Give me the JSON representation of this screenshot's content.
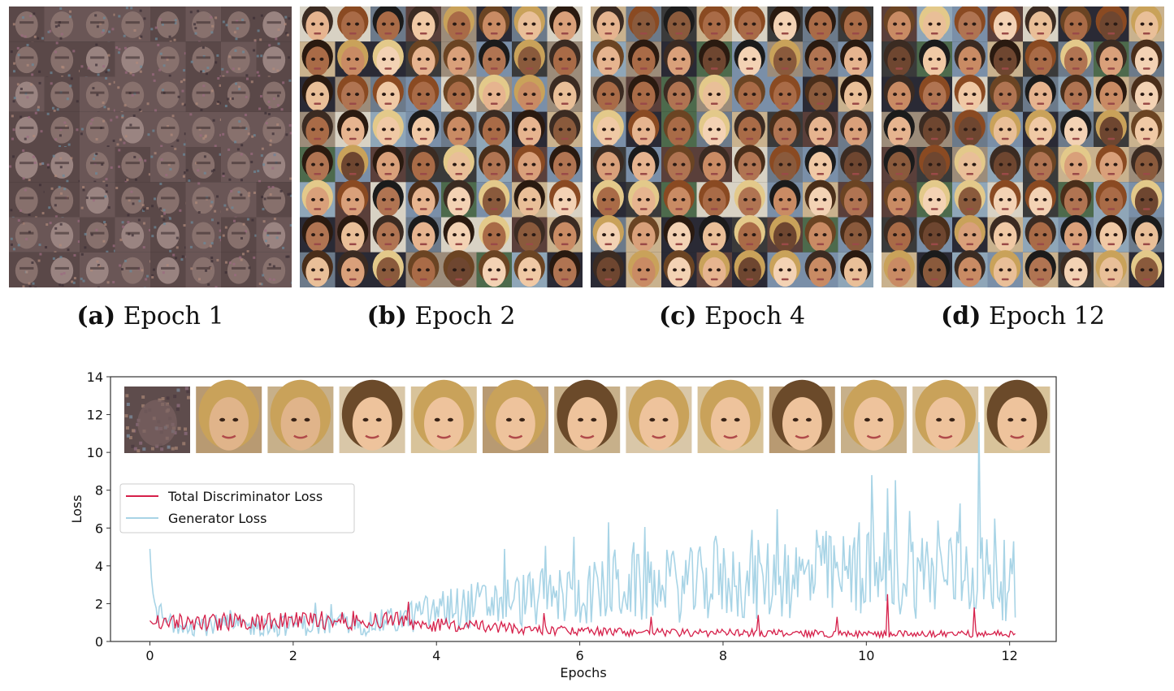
{
  "panels": [
    {
      "letter": "(a)",
      "label": "Epoch 1",
      "style": "noise"
    },
    {
      "letter": "(b)",
      "label": "Epoch 2",
      "style": "faces"
    },
    {
      "letter": "(c)",
      "label": "Epoch 4",
      "style": "faces"
    },
    {
      "letter": "(d)",
      "label": "Epoch 12",
      "style": "faces"
    }
  ],
  "colors": {
    "discriminator": "#d6204a",
    "generator": "#a8d4e6",
    "axis": "#333333"
  },
  "chart_data": {
    "type": "line",
    "xlabel": "Epochs",
    "ylabel": "Loss",
    "xlim": [
      -0.55,
      12.65
    ],
    "ylim": [
      0,
      14
    ],
    "xticks": [
      0,
      2,
      4,
      6,
      8,
      10,
      12
    ],
    "yticks": [
      0,
      2,
      4,
      6,
      8,
      10,
      12,
      14
    ],
    "legend_position": "upper-left",
    "inset_thumbnails": 13,
    "series": [
      {
        "name": "Total Discriminator Loss",
        "x": [
          0,
          0.05,
          0.1,
          0.5,
          1,
          1.5,
          2,
          2.5,
          3,
          3.3,
          3.6,
          4,
          4.5,
          5,
          5.5,
          6,
          6.5,
          7,
          7.5,
          8,
          8.5,
          9,
          9.5,
          10,
          10.5,
          11,
          11.5,
          12,
          12.1
        ],
        "values": [
          1.1,
          0.9,
          1.0,
          1.0,
          1.05,
          1.0,
          1.1,
          1.15,
          1.1,
          1.2,
          1.0,
          0.9,
          0.8,
          0.7,
          0.6,
          0.55,
          0.5,
          0.5,
          0.45,
          0.45,
          0.45,
          0.45,
          0.4,
          0.4,
          0.4,
          0.4,
          0.4,
          0.4,
          0.5
        ],
        "peaks": [
          [
            3.6,
            2.1
          ],
          [
            5.5,
            1.5
          ],
          [
            7.0,
            1.3
          ],
          [
            8.5,
            1.4
          ],
          [
            9.6,
            1.3
          ],
          [
            10.3,
            2.5
          ],
          [
            11.5,
            1.8
          ]
        ]
      },
      {
        "name": "Generator Loss",
        "x": [
          0,
          0.03,
          0.08,
          0.2,
          0.5,
          1,
          1.5,
          2,
          2.5,
          3,
          3.5,
          4,
          4.5,
          5,
          5.5,
          6,
          6.5,
          7,
          7.5,
          8,
          8.5,
          9,
          9.5,
          10,
          10.5,
          11,
          11.5,
          12,
          12.1
        ],
        "values": [
          4.9,
          2.8,
          1.8,
          1.2,
          1.0,
          0.95,
          0.9,
          0.95,
          1.0,
          1.0,
          1.3,
          1.8,
          2.1,
          2.4,
          2.6,
          2.8,
          3.0,
          3.2,
          3.3,
          3.5,
          3.6,
          3.7,
          3.8,
          4.0,
          4.0,
          4.0,
          4.1,
          3.5,
          1.5
        ],
        "peaks": [
          [
            6.4,
            6.3
          ],
          [
            8.4,
            5.9
          ],
          [
            9.3,
            5.9
          ],
          [
            9.9,
            6.3
          ],
          [
            10.07,
            8.8
          ],
          [
            10.3,
            8.1
          ],
          [
            10.6,
            6.9
          ],
          [
            11.0,
            6.4
          ],
          [
            11.3,
            7.3
          ],
          [
            11.57,
            11.6
          ],
          [
            11.8,
            6.5
          ],
          [
            12.05,
            5.3
          ]
        ]
      }
    ]
  }
}
